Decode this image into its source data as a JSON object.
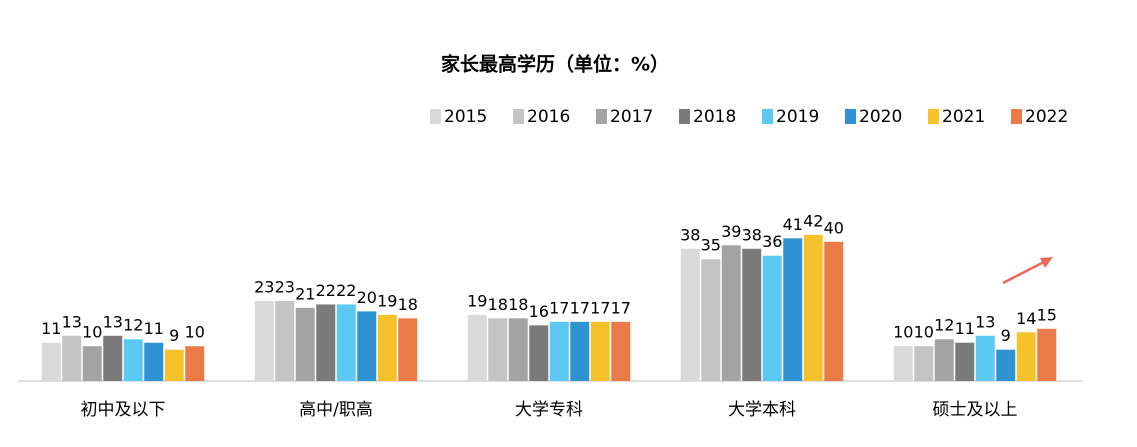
{
  "chart_data": {
    "type": "bar",
    "title": "家长最高学历（单位：%）",
    "categories": [
      "初中及以下",
      "高中/职高",
      "大学专科",
      "大学本科",
      "硕士及以上"
    ],
    "series": [
      {
        "name": "2015",
        "color": "#d9d9d9",
        "values": [
          11,
          23,
          19,
          38,
          10
        ]
      },
      {
        "name": "2016",
        "color": "#c4c4c4",
        "values": [
          13,
          23,
          18,
          35,
          10
        ]
      },
      {
        "name": "2017",
        "color": "#a3a3a3",
        "values": [
          10,
          21,
          18,
          39,
          12
        ]
      },
      {
        "name": "2018",
        "color": "#7a7a7a",
        "values": [
          13,
          22,
          16,
          38,
          11
        ]
      },
      {
        "name": "2019",
        "color": "#5cc9f2",
        "values": [
          12,
          22,
          17,
          36,
          13
        ]
      },
      {
        "name": "2020",
        "color": "#2f92d2",
        "values": [
          11,
          20,
          17,
          41,
          9
        ]
      },
      {
        "name": "2021",
        "color": "#f6c22b",
        "values": [
          9,
          19,
          17,
          42,
          14
        ]
      },
      {
        "name": "2022",
        "color": "#ea7a47",
        "values": [
          10,
          18,
          17,
          40,
          15
        ]
      }
    ],
    "legend": "top-right"
  }
}
